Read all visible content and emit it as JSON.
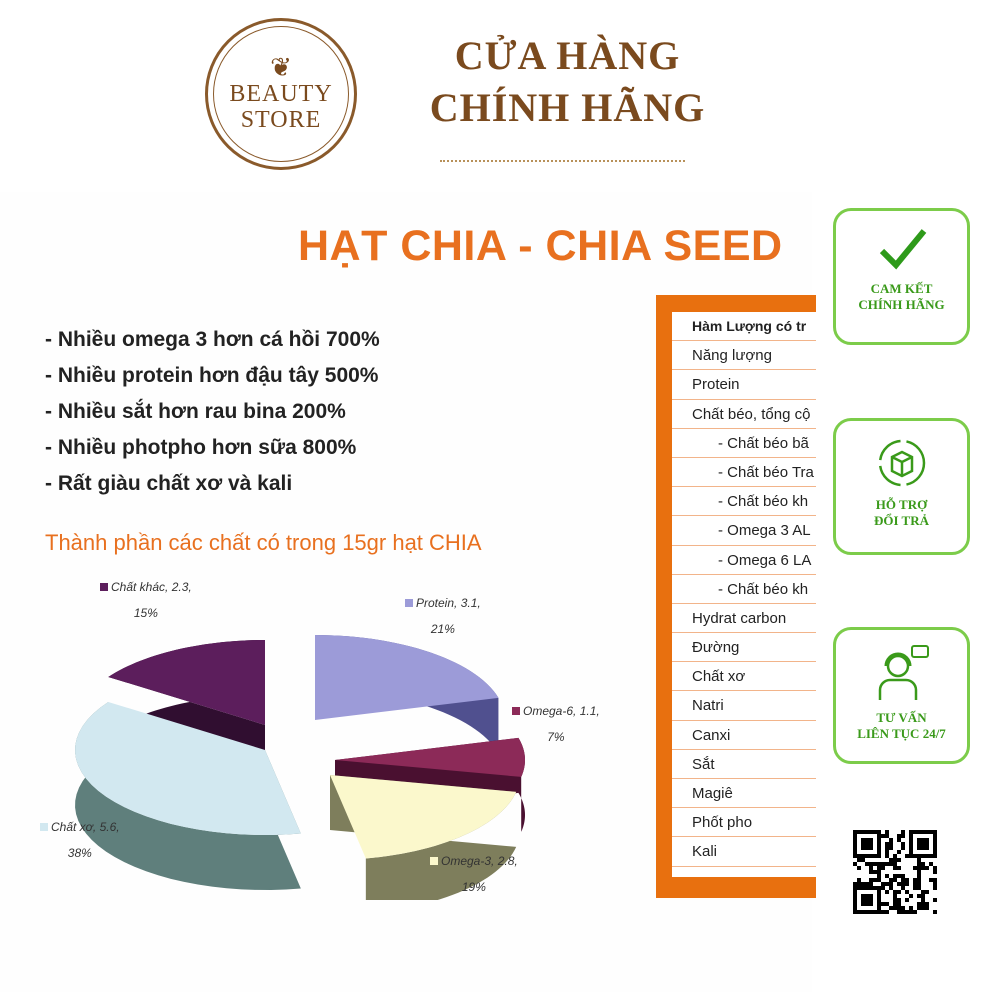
{
  "logo": {
    "line1": "BEAUTY",
    "line2": "STORE"
  },
  "header": {
    "line1": "CỬA HÀNG",
    "line2": "CHÍNH HÃNG"
  },
  "title": "HẠT CHIA - CHIA SEED",
  "bullets": [
    "- Nhiều omega 3 hơn cá hồi 700%",
    "- Nhiều protein hơn đậu tây 500%",
    "- Nhiều sắt hơn rau bina 200%",
    "- Nhiều photpho hơn sữa 800%",
    "- Rất giàu chất xơ và kali"
  ],
  "subtitle": "Thành phần các chất có trong 15gr hạt CHIA",
  "chart_data": {
    "type": "pie",
    "three_d": true,
    "exploded": true,
    "categories": [
      "Protein",
      "Omega-6",
      "Omega-3",
      "Chất xơ",
      "Chất khác"
    ],
    "values": [
      3.1,
      1.1,
      2.8,
      5.6,
      2.3
    ],
    "percents": [
      21,
      7,
      19,
      38,
      15
    ],
    "labels": [
      {
        "l1": "Protein, 3.1,",
        "l2": "21%"
      },
      {
        "l1": "Omega-6, 1.1,",
        "l2": "7%"
      },
      {
        "l1": "Omega-3, 2.8,",
        "l2": "19%"
      },
      {
        "l1": "Chất xơ, 5.6,",
        "l2": "38%"
      },
      {
        "l1": "Chất khác, 2.3,",
        "l2": "15%"
      }
    ],
    "colors": [
      "#9c9bd8",
      "#8c2a58",
      "#fbf8cc",
      "#d2e8f0",
      "#5c1e5c"
    ],
    "side_colors": [
      "#50508f",
      "#4a1030",
      "#7e7e5c",
      "#5f7f7c",
      "#300e30"
    ]
  },
  "table": {
    "header": "Hàm Lượng có tr",
    "rows": [
      {
        "t": "Năng lượng"
      },
      {
        "t": "Protein"
      },
      {
        "t": "Chất béo, tổng cộ"
      },
      {
        "t": "- Chất béo bã",
        "ind": true
      },
      {
        "t": "- Chất béo Tra",
        "ind": true
      },
      {
        "t": "- Chất béo kh",
        "ind": true
      },
      {
        "t": "- Omega 3 AL",
        "ind": true
      },
      {
        "t": "- Omega 6 LA",
        "ind": true
      },
      {
        "t": "- Chất béo kh",
        "ind": true
      },
      {
        "t": "Hydrat carbon"
      },
      {
        "t": "Đường"
      },
      {
        "t": "Chất xơ"
      },
      {
        "t": "Natri"
      },
      {
        "t": "Canxi"
      },
      {
        "t": "Sắt"
      },
      {
        "t": "Magiê"
      },
      {
        "t": "Phốt pho"
      },
      {
        "t": "Kali"
      }
    ]
  },
  "badges": [
    {
      "icon": "checkmark-icon",
      "l1": "CAM KẾT",
      "l2": "CHÍNH HÃNG"
    },
    {
      "icon": "return-box-icon",
      "l1": "HỖ TRỢ",
      "l2": "ĐỔI TRẢ"
    },
    {
      "icon": "support-agent-icon",
      "l1": "TƯ VẤN",
      "l2": "LIÊN TỤC 24/7"
    }
  ],
  "colors": {
    "brand": "#7a4a1e",
    "accent": "#e8701f",
    "badge": "#3a9a1a"
  }
}
